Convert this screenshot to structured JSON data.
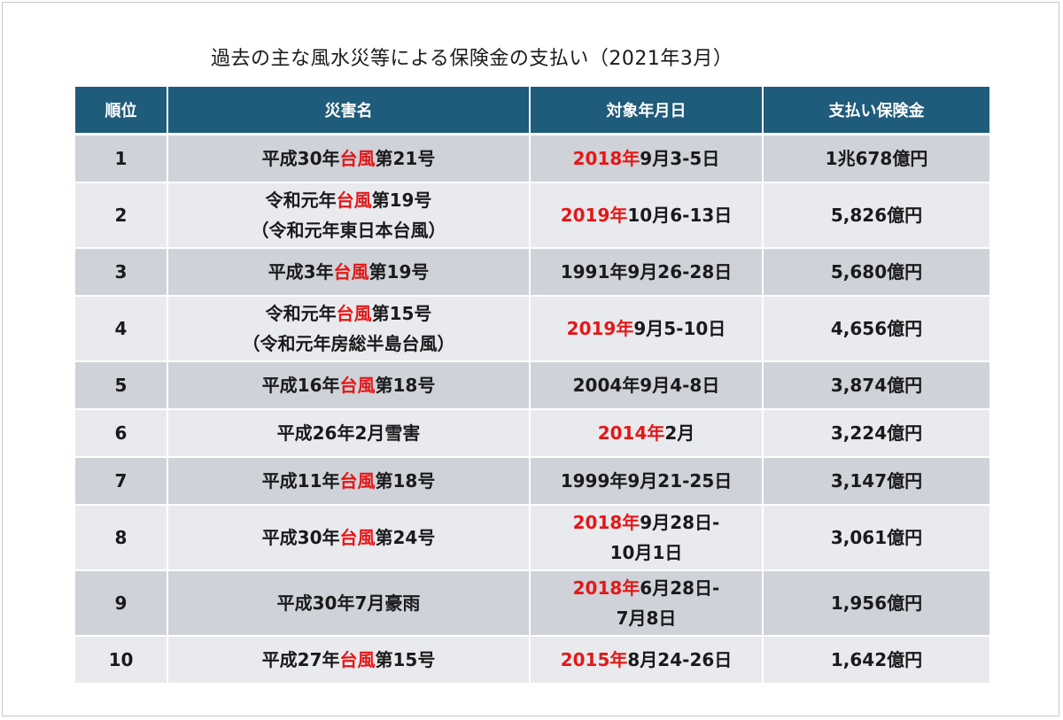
{
  "title": "過去の主な風水災等による保険金の支払い（2021年3月）",
  "colors": {
    "header_bg": "#1f5b7a",
    "row_odd": "#cfd2d9",
    "row_even": "#e8eaee",
    "highlight": "#e51717"
  },
  "columns": [
    "順位",
    "災害名",
    "対象年月日",
    "支払い保険金"
  ],
  "rows": [
    {
      "rank": "1",
      "name": [
        {
          "pre": "平成30年",
          "hl": "台風",
          "post": "第21号"
        }
      ],
      "date": [
        {
          "hl": "2018年",
          "post": "9月3-5日"
        }
      ],
      "amount": "1兆678億円"
    },
    {
      "rank": "2",
      "name": [
        {
          "pre": "令和元年",
          "hl": "台風",
          "post": "第19号"
        },
        {
          "pre": "（令和元年東日本台風）",
          "hl": "",
          "post": ""
        }
      ],
      "date": [
        {
          "hl": "2019年",
          "post": "10月6-13日"
        }
      ],
      "amount": "5,826億円"
    },
    {
      "rank": "3",
      "name": [
        {
          "pre": "平成3年",
          "hl": "台風",
          "post": "第19号"
        }
      ],
      "date": [
        {
          "hl": "",
          "post": "1991年9月26-28日"
        }
      ],
      "amount": "5,680億円"
    },
    {
      "rank": "4",
      "name": [
        {
          "pre": "令和元年",
          "hl": "台風",
          "post": "第15号"
        },
        {
          "pre": "（令和元年房総半島台風）",
          "hl": "",
          "post": ""
        }
      ],
      "date": [
        {
          "hl": "2019年",
          "post": "9月5-10日"
        }
      ],
      "amount": "4,656億円"
    },
    {
      "rank": "5",
      "name": [
        {
          "pre": "平成16年",
          "hl": "台風",
          "post": "第18号"
        }
      ],
      "date": [
        {
          "hl": "",
          "post": "2004年9月4-8日"
        }
      ],
      "amount": "3,874億円"
    },
    {
      "rank": "6",
      "name": [
        {
          "pre": "平成26年2月雪害",
          "hl": "",
          "post": ""
        }
      ],
      "date": [
        {
          "hl": "2014年",
          "post": "2月"
        }
      ],
      "amount": "3,224億円"
    },
    {
      "rank": "7",
      "name": [
        {
          "pre": "平成11年",
          "hl": "台風",
          "post": "第18号"
        }
      ],
      "date": [
        {
          "hl": "",
          "post": "1999年9月21-25日"
        }
      ],
      "amount": "3,147億円"
    },
    {
      "rank": "8",
      "name": [
        {
          "pre": "平成30年",
          "hl": "台風",
          "post": "第24号"
        }
      ],
      "date": [
        {
          "hl": "2018年",
          "post": "9月28日-"
        },
        {
          "hl": "",
          "post": "10月1日"
        }
      ],
      "amount": "3,061億円"
    },
    {
      "rank": "9",
      "name": [
        {
          "pre": "平成30年7月豪雨",
          "hl": "",
          "post": ""
        }
      ],
      "date": [
        {
          "hl": "2018年",
          "post": "6月28日-"
        },
        {
          "hl": "",
          "post": "7月8日"
        }
      ],
      "amount": "1,956億円"
    },
    {
      "rank": "10",
      "name": [
        {
          "pre": "平成27年",
          "hl": "台風",
          "post": "第15号"
        }
      ],
      "date": [
        {
          "hl": "2015年",
          "post": "8月24-26日"
        }
      ],
      "amount": "1,642億円"
    }
  ]
}
